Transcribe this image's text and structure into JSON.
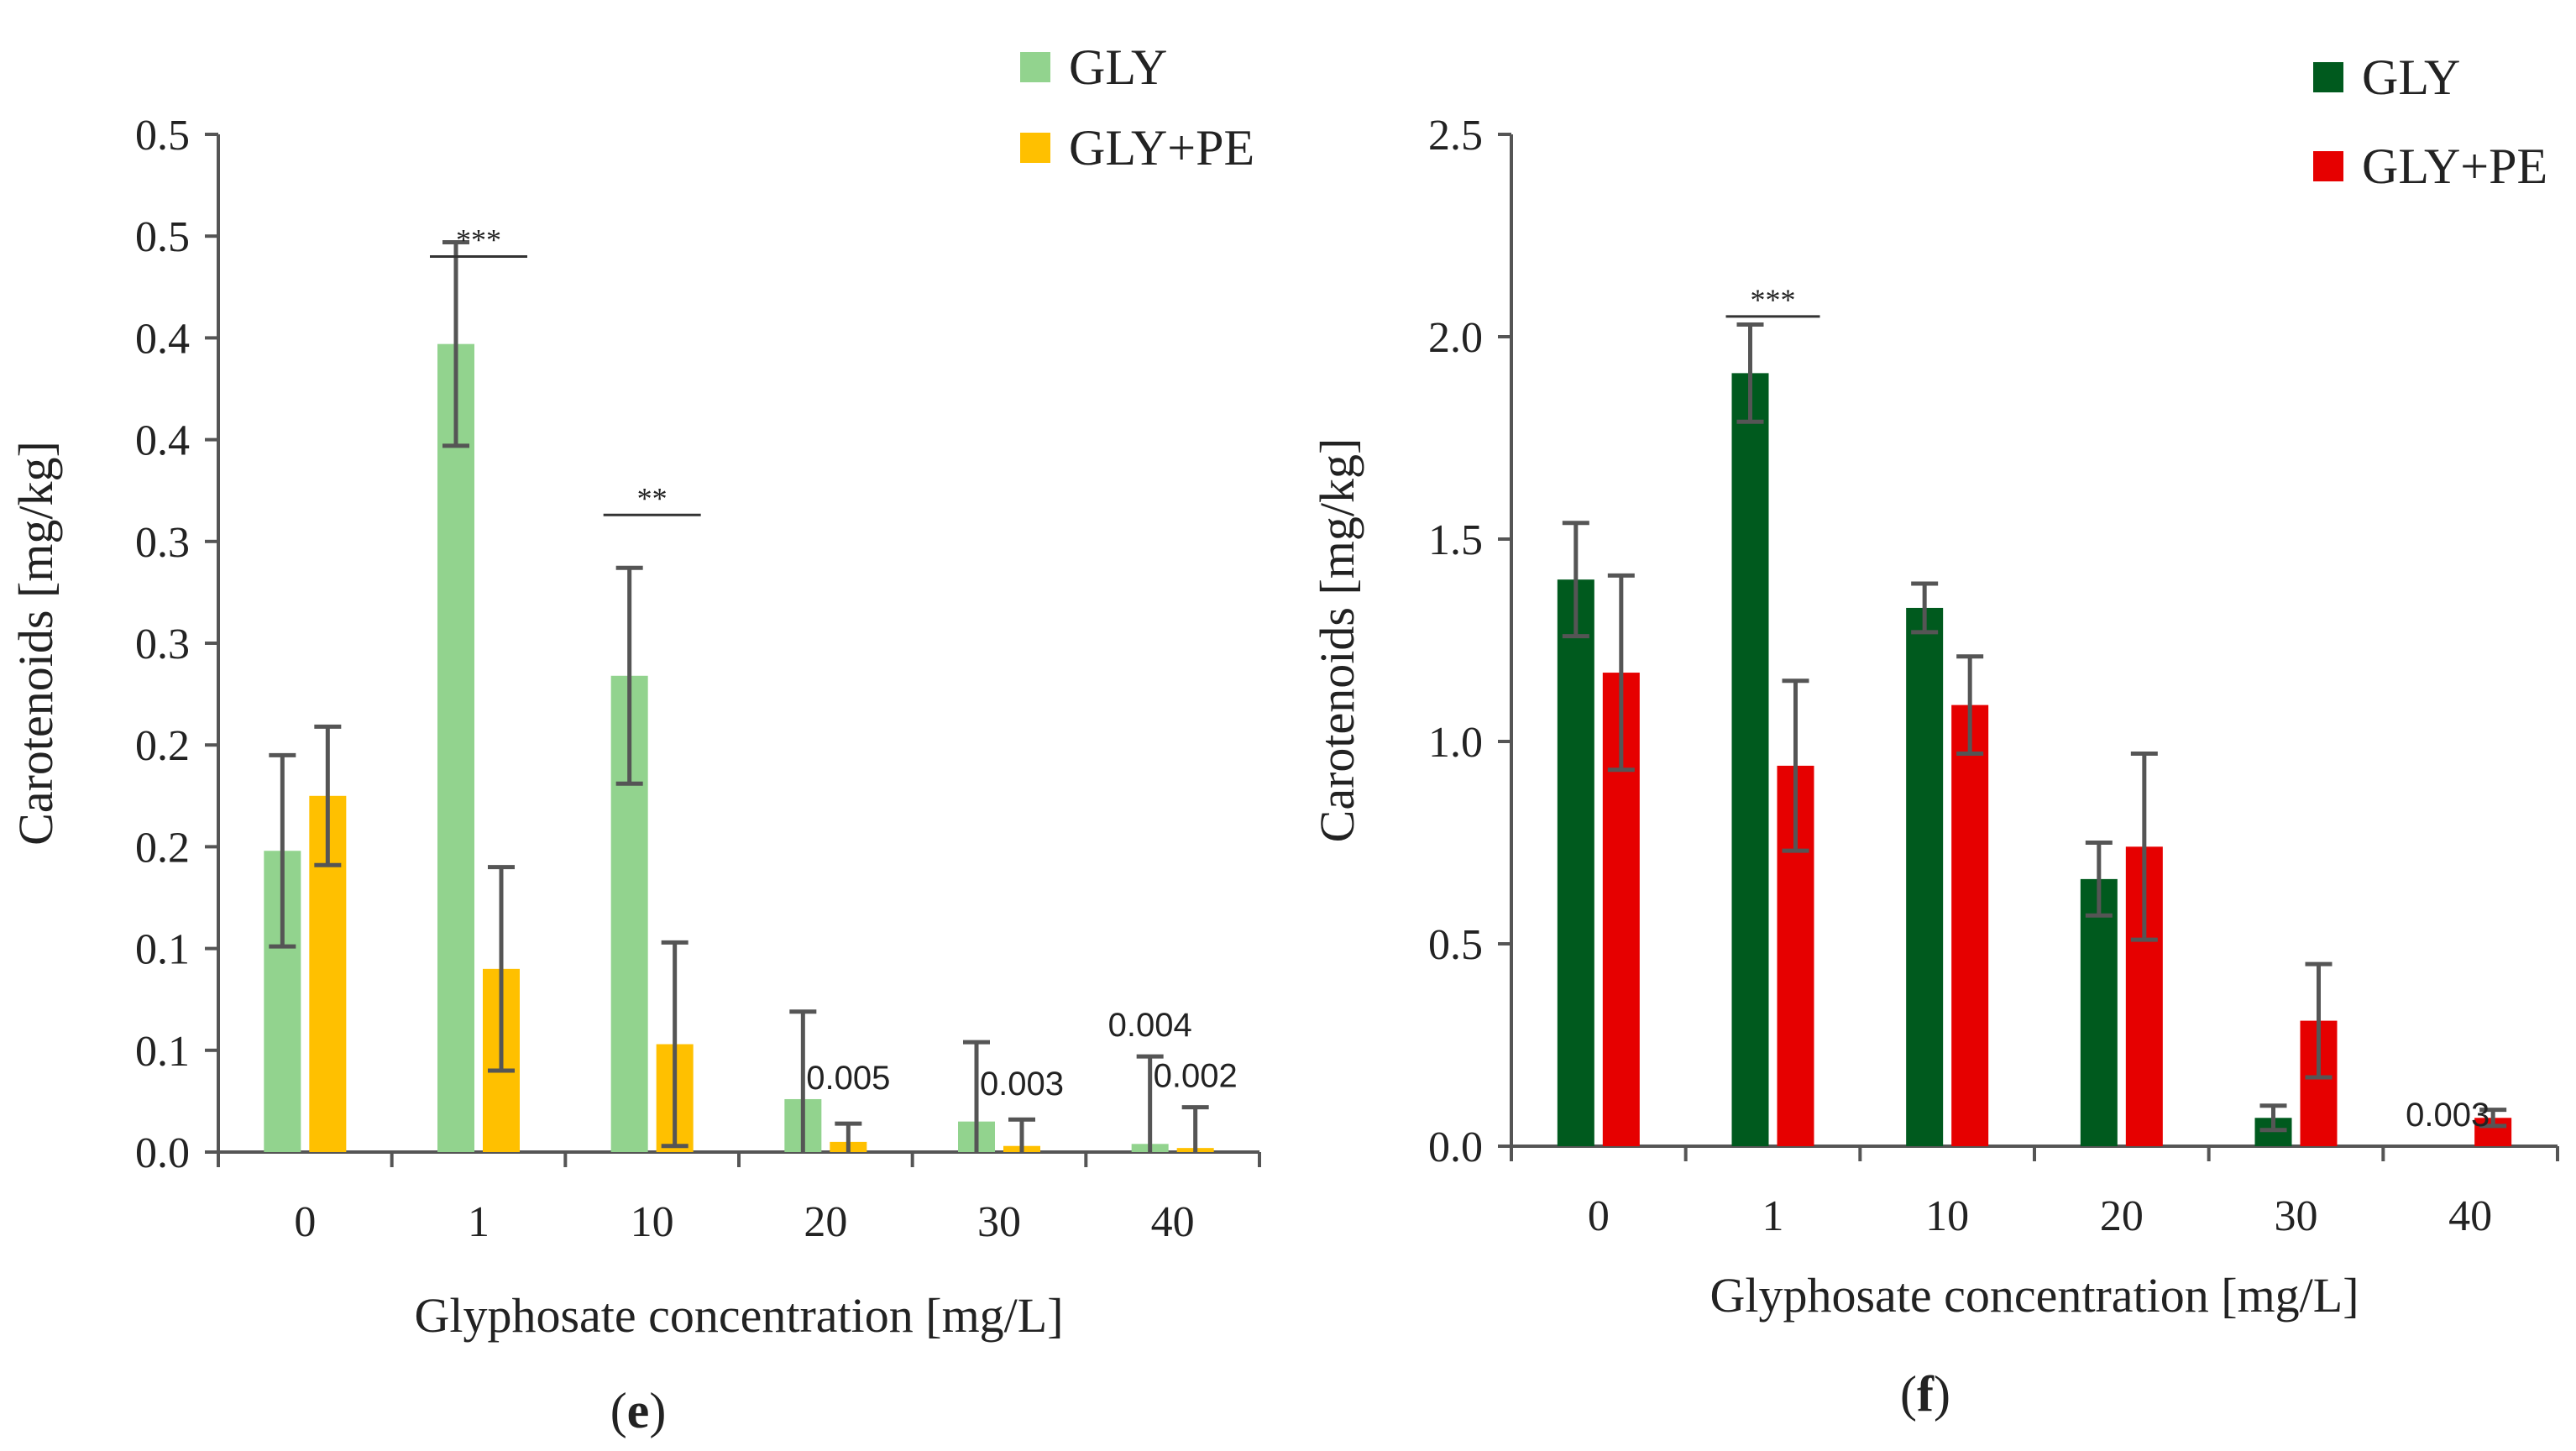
{
  "chart_data": [
    {
      "type": "bar",
      "panel_label_prefix": "(",
      "panel_label_letter": "e",
      "panel_label_suffix": ")",
      "xlabel": "Glyphosate concentration [mg/L]",
      "ylabel": "Carotenoids [mg/kg]",
      "ylim": [
        0,
        0.5
      ],
      "y_tick_labels": [
        "0.0",
        "0.1",
        "0.1",
        "0.2",
        "0.2",
        "0.3",
        "0.3",
        "0.4",
        "0.4",
        "0.5",
        "0.5"
      ],
      "categories": [
        "0",
        "1",
        "10",
        "20",
        "30",
        "40"
      ],
      "legend_position": "top-right",
      "series": [
        {
          "name": "GLY",
          "color": "#92d38e",
          "values": [
            0.148,
            0.397,
            0.234,
            0.026,
            0.015,
            0.004
          ],
          "errors": [
            0.047,
            0.05,
            0.053,
            0.043,
            0.039,
            0.043
          ]
        },
        {
          "name": "GLY+PE",
          "color": "#ffc000",
          "values": [
            0.175,
            0.09,
            0.053,
            0.005,
            0.003,
            0.002
          ],
          "errors": [
            0.034,
            0.05,
            0.05,
            0.009,
            0.013,
            0.02
          ]
        }
      ],
      "significance": [
        {
          "category_index": 1,
          "label": "***",
          "level": 0.44
        },
        {
          "category_index": 2,
          "label": "**",
          "level": 0.313
        }
      ],
      "value_labels": [
        {
          "series_index": 1,
          "category_index": 3,
          "text": "0.005",
          "level": 0.031
        },
        {
          "series_index": 1,
          "category_index": 4,
          "text": "0.003",
          "level": 0.028
        },
        {
          "series_index": 0,
          "category_index": 5,
          "text": "0.004",
          "level": 0.057
        },
        {
          "series_index": 1,
          "category_index": 5,
          "text": "0.002",
          "level": 0.032
        }
      ]
    },
    {
      "type": "bar",
      "panel_label_prefix": "(",
      "panel_label_letter": "f",
      "panel_label_suffix": ")",
      "xlabel": "Glyphosate concentration [mg/L]",
      "ylabel": "Carotenoids [mg/kg]",
      "ylim": [
        0,
        2.5
      ],
      "y_tick_labels": [
        "0.0",
        "0.5",
        "1.0",
        "1.5",
        "2.0",
        "2.5"
      ],
      "categories": [
        "0",
        "1",
        "10",
        "20",
        "30",
        "40"
      ],
      "legend_position": "top-right",
      "series": [
        {
          "name": "GLY",
          "color": "#005a1e",
          "values": [
            1.4,
            1.91,
            1.33,
            0.66,
            0.07,
            0.0
          ],
          "errors": [
            0.14,
            0.12,
            0.06,
            0.09,
            0.03,
            0.0
          ]
        },
        {
          "name": "GLY+PE",
          "color": "#e60000",
          "values": [
            1.17,
            0.94,
            1.09,
            0.74,
            0.31,
            0.07
          ],
          "errors": [
            0.24,
            0.21,
            0.12,
            0.23,
            0.14,
            0.02
          ]
        }
      ],
      "significance": [
        {
          "category_index": 1,
          "label": "***",
          "level": 2.05
        }
      ],
      "value_labels": [
        {
          "series_index": 0,
          "category_index": 5,
          "text": "0.003",
          "level": 0.05
        }
      ]
    }
  ]
}
